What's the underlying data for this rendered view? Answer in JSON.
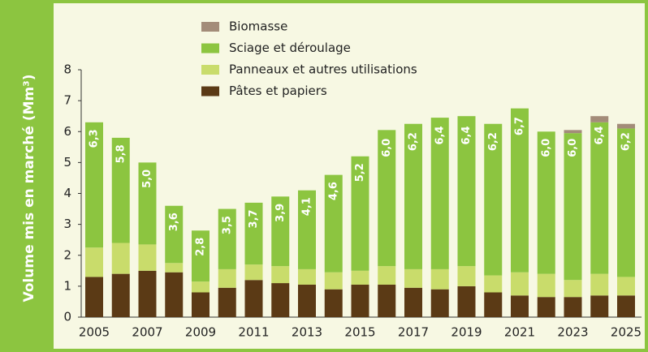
{
  "chart_data": {
    "type": "stacked_bar",
    "ylabel": "Volume mis en marché (Mm³)",
    "categories": [
      "2005",
      null,
      "2007",
      null,
      "2009",
      null,
      "2011",
      null,
      "2013",
      null,
      "2015",
      null,
      "2017",
      null,
      "2019",
      null,
      "2021",
      null,
      "2023",
      null,
      "2025"
    ],
    "series": [
      {
        "name": "Pâtes et papiers",
        "color": "#5b3a15",
        "values": [
          1.3,
          1.4,
          1.5,
          1.45,
          0.8,
          0.95,
          1.2,
          1.1,
          1.05,
          0.9,
          1.05,
          1.05,
          0.95,
          0.9,
          1.0,
          0.8,
          0.7,
          0.65,
          0.65,
          0.7,
          0.7
        ]
      },
      {
        "name": "Panneaux et autres utilisations",
        "color": "#c9dc6b",
        "values": [
          0.95,
          1.0,
          0.85,
          0.3,
          0.35,
          0.6,
          0.5,
          0.55,
          0.5,
          0.55,
          0.45,
          0.6,
          0.6,
          0.65,
          0.65,
          0.55,
          0.75,
          0.75,
          0.55,
          0.7,
          0.6
        ]
      },
      {
        "name": "Sciage et déroulage",
        "color": "#8cc540",
        "values": [
          4.05,
          3.4,
          2.65,
          1.85,
          1.65,
          1.95,
          2.0,
          2.25,
          2.55,
          3.15,
          3.7,
          4.4,
          4.7,
          4.9,
          4.85,
          4.9,
          5.3,
          4.6,
          4.75,
          4.9,
          4.8
        ]
      },
      {
        "name": "Biomasse",
        "color": "#a38c79",
        "values": [
          0,
          0,
          0,
          0,
          0,
          0,
          0,
          0,
          0,
          0,
          0,
          0,
          0,
          0,
          0,
          0,
          0,
          0,
          0.1,
          0.2,
          0.15
        ]
      }
    ],
    "totals": {
      "values": [
        6.3,
        5.8,
        5.0,
        3.6,
        2.8,
        3.5,
        3.7,
        3.9,
        4.1,
        4.6,
        5.2,
        6.0,
        6.2,
        6.4,
        6.4,
        6.2,
        6.7,
        6.0,
        6.0,
        6.4,
        6.2
      ],
      "value_labels": [
        "6,3",
        "5,8",
        "5,0",
        "3,6",
        "2,8",
        "3,5",
        "3,7",
        "3,9",
        "4,1",
        "4,6",
        "5,2",
        "6,0",
        "6,2",
        "6,4",
        "6,4",
        "6,2",
        "6,7",
        "6,0",
        "6,0",
        "6,4",
        "6,2"
      ]
    },
    "ylim": [
      0,
      8
    ],
    "yticks": [
      0,
      1,
      2,
      3,
      4,
      5,
      6,
      7,
      8
    ]
  }
}
